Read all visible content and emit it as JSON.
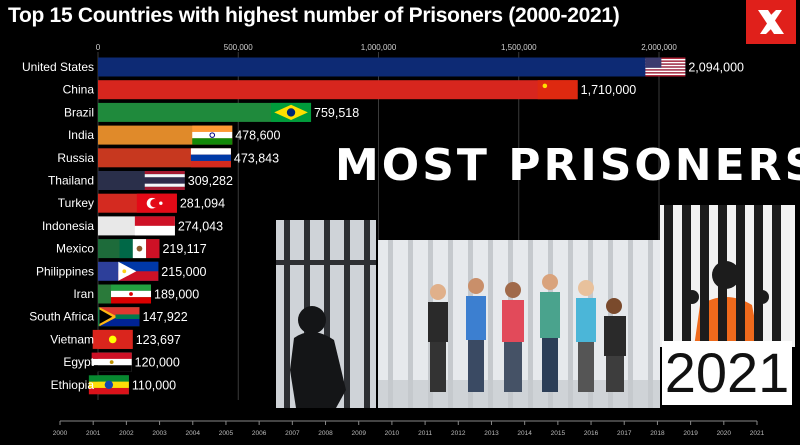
{
  "title": "Top 15 Countries with highest number of Prisoners (2000-2021)",
  "overlay": {
    "headline": "MOST PRISONERS",
    "year": "2021"
  },
  "chart_data": {
    "type": "bar",
    "orientation": "horizontal",
    "title": "Top 15 Countries with highest number of Prisoners (2000-2021)",
    "xlim": [
      0,
      2150000
    ],
    "x_ticks": [
      "0",
      "500,000",
      "1,000,000",
      "1,500,000",
      "2,000,000"
    ],
    "x_tick_values": [
      0,
      500000,
      1000000,
      1500000,
      2000000
    ],
    "grid": true,
    "categories": [
      "United States",
      "China",
      "Brazil",
      "India",
      "Russia",
      "Thailand",
      "Turkey",
      "Indonesia",
      "Mexico",
      "Philippines",
      "Iran",
      "South Africa",
      "Vietnam",
      "Egypt",
      "Ethiopia"
    ],
    "values": [
      2094000,
      1710000,
      759518,
      478600,
      473843,
      309282,
      281094,
      274043,
      219117,
      215000,
      189000,
      147922,
      123697,
      120000,
      110000
    ],
    "value_labels": [
      "2,094,000",
      "1,710,000",
      "759,518",
      "478,600",
      "473,843",
      "309,282",
      "281,094",
      "274,043",
      "219,117",
      "215,000",
      "189,000",
      "147,922",
      "123,697",
      "120,000",
      "110,000"
    ],
    "colors": [
      "#0d2a74",
      "#d7261e",
      "#1f8a3c",
      "#e08a2a",
      "#c7381f",
      "#2a2f4a",
      "#d42a20",
      "#e8e8e8",
      "#1d6b3a",
      "#2d3f9a",
      "#2a7a3a",
      "#1a7a4a",
      "#cf2a1f",
      "#d8d8d8",
      "#1f8a3a"
    ],
    "flags": [
      "usa",
      "china",
      "brazil",
      "india",
      "russia",
      "thailand",
      "turkey",
      "indonesia",
      "mexico",
      "philippines",
      "iran",
      "south-africa",
      "vietnam",
      "egypt",
      "ethiopia"
    ],
    "timeline": [
      "2000",
      "2001",
      "2002",
      "2003",
      "2004",
      "2005",
      "2006",
      "2007",
      "2008",
      "2009",
      "2010",
      "2011",
      "2012",
      "2013",
      "2014",
      "2015",
      "2016",
      "2017",
      "2018",
      "2019",
      "2020",
      "2021"
    ],
    "timeline_current": "2021"
  }
}
